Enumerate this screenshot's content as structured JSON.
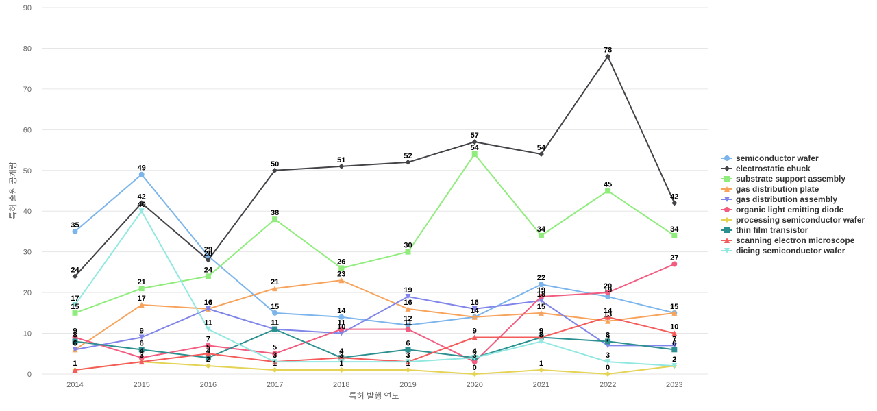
{
  "chart_data": {
    "type": "line",
    "xlabel": "특허 발행 연도",
    "ylabel": "특허 출원 공개량",
    "ylim": [
      0,
      90
    ],
    "yticks": [
      0,
      10,
      20,
      30,
      40,
      50,
      60,
      70,
      80,
      90
    ],
    "grid": true,
    "legend_position": "right",
    "categories": [
      "2014",
      "2015",
      "2016",
      "2017",
      "2018",
      "2019",
      "2020",
      "2021",
      "2022",
      "2023"
    ],
    "series": [
      {
        "name": "semiconductor wafer",
        "color": "#7cb5ec",
        "marker": "circle",
        "values": [
          35,
          49,
          29,
          15,
          14,
          12,
          14,
          22,
          19,
          15
        ]
      },
      {
        "name": "electrostatic chuck",
        "color": "#434348",
        "marker": "diamond",
        "values": [
          24,
          42,
          28,
          50,
          51,
          52,
          57,
          54,
          78,
          42
        ]
      },
      {
        "name": "substrate support assembly",
        "color": "#90ed7d",
        "marker": "square",
        "values": [
          15,
          21,
          24,
          38,
          26,
          30,
          54,
          34,
          45,
          34
        ]
      },
      {
        "name": "gas distribution plate",
        "color": "#f7a35c",
        "marker": "triangle",
        "values": [
          6,
          17,
          16,
          21,
          23,
          16,
          14,
          15,
          13,
          15
        ]
      },
      {
        "name": "gas distribution assembly",
        "color": "#8085e9",
        "marker": "triangle-down",
        "values": [
          6,
          9,
          16,
          11,
          10,
          19,
          16,
          18,
          7,
          7
        ]
      },
      {
        "name": "organic light emitting diode",
        "color": "#f15c80",
        "marker": "circle",
        "values": [
          9,
          4,
          7,
          5,
          11,
          11,
          3,
          19,
          20,
          27
        ]
      },
      {
        "name": "processing semiconductor wafer",
        "color": "#e4d354",
        "marker": "diamond",
        "values": [
          1,
          3,
          2,
          1,
          1,
          1,
          0,
          1,
          0,
          2
        ]
      },
      {
        "name": "thin film transistor",
        "color": "#2b908f",
        "marker": "square",
        "values": [
          8,
          6,
          4,
          11,
          4,
          6,
          4,
          9,
          8,
          6
        ]
      },
      {
        "name": "scanning electron microscope",
        "color": "#f45b5b",
        "marker": "triangle",
        "values": [
          1,
          3,
          5,
          3,
          4,
          3,
          9,
          9,
          14,
          10
        ]
      },
      {
        "name": "dicing semiconductor wafer",
        "color": "#91e8e1",
        "marker": "triangle-down",
        "values": [
          17,
          40,
          11,
          3,
          3,
          3,
          4,
          8,
          3,
          2
        ]
      }
    ]
  }
}
